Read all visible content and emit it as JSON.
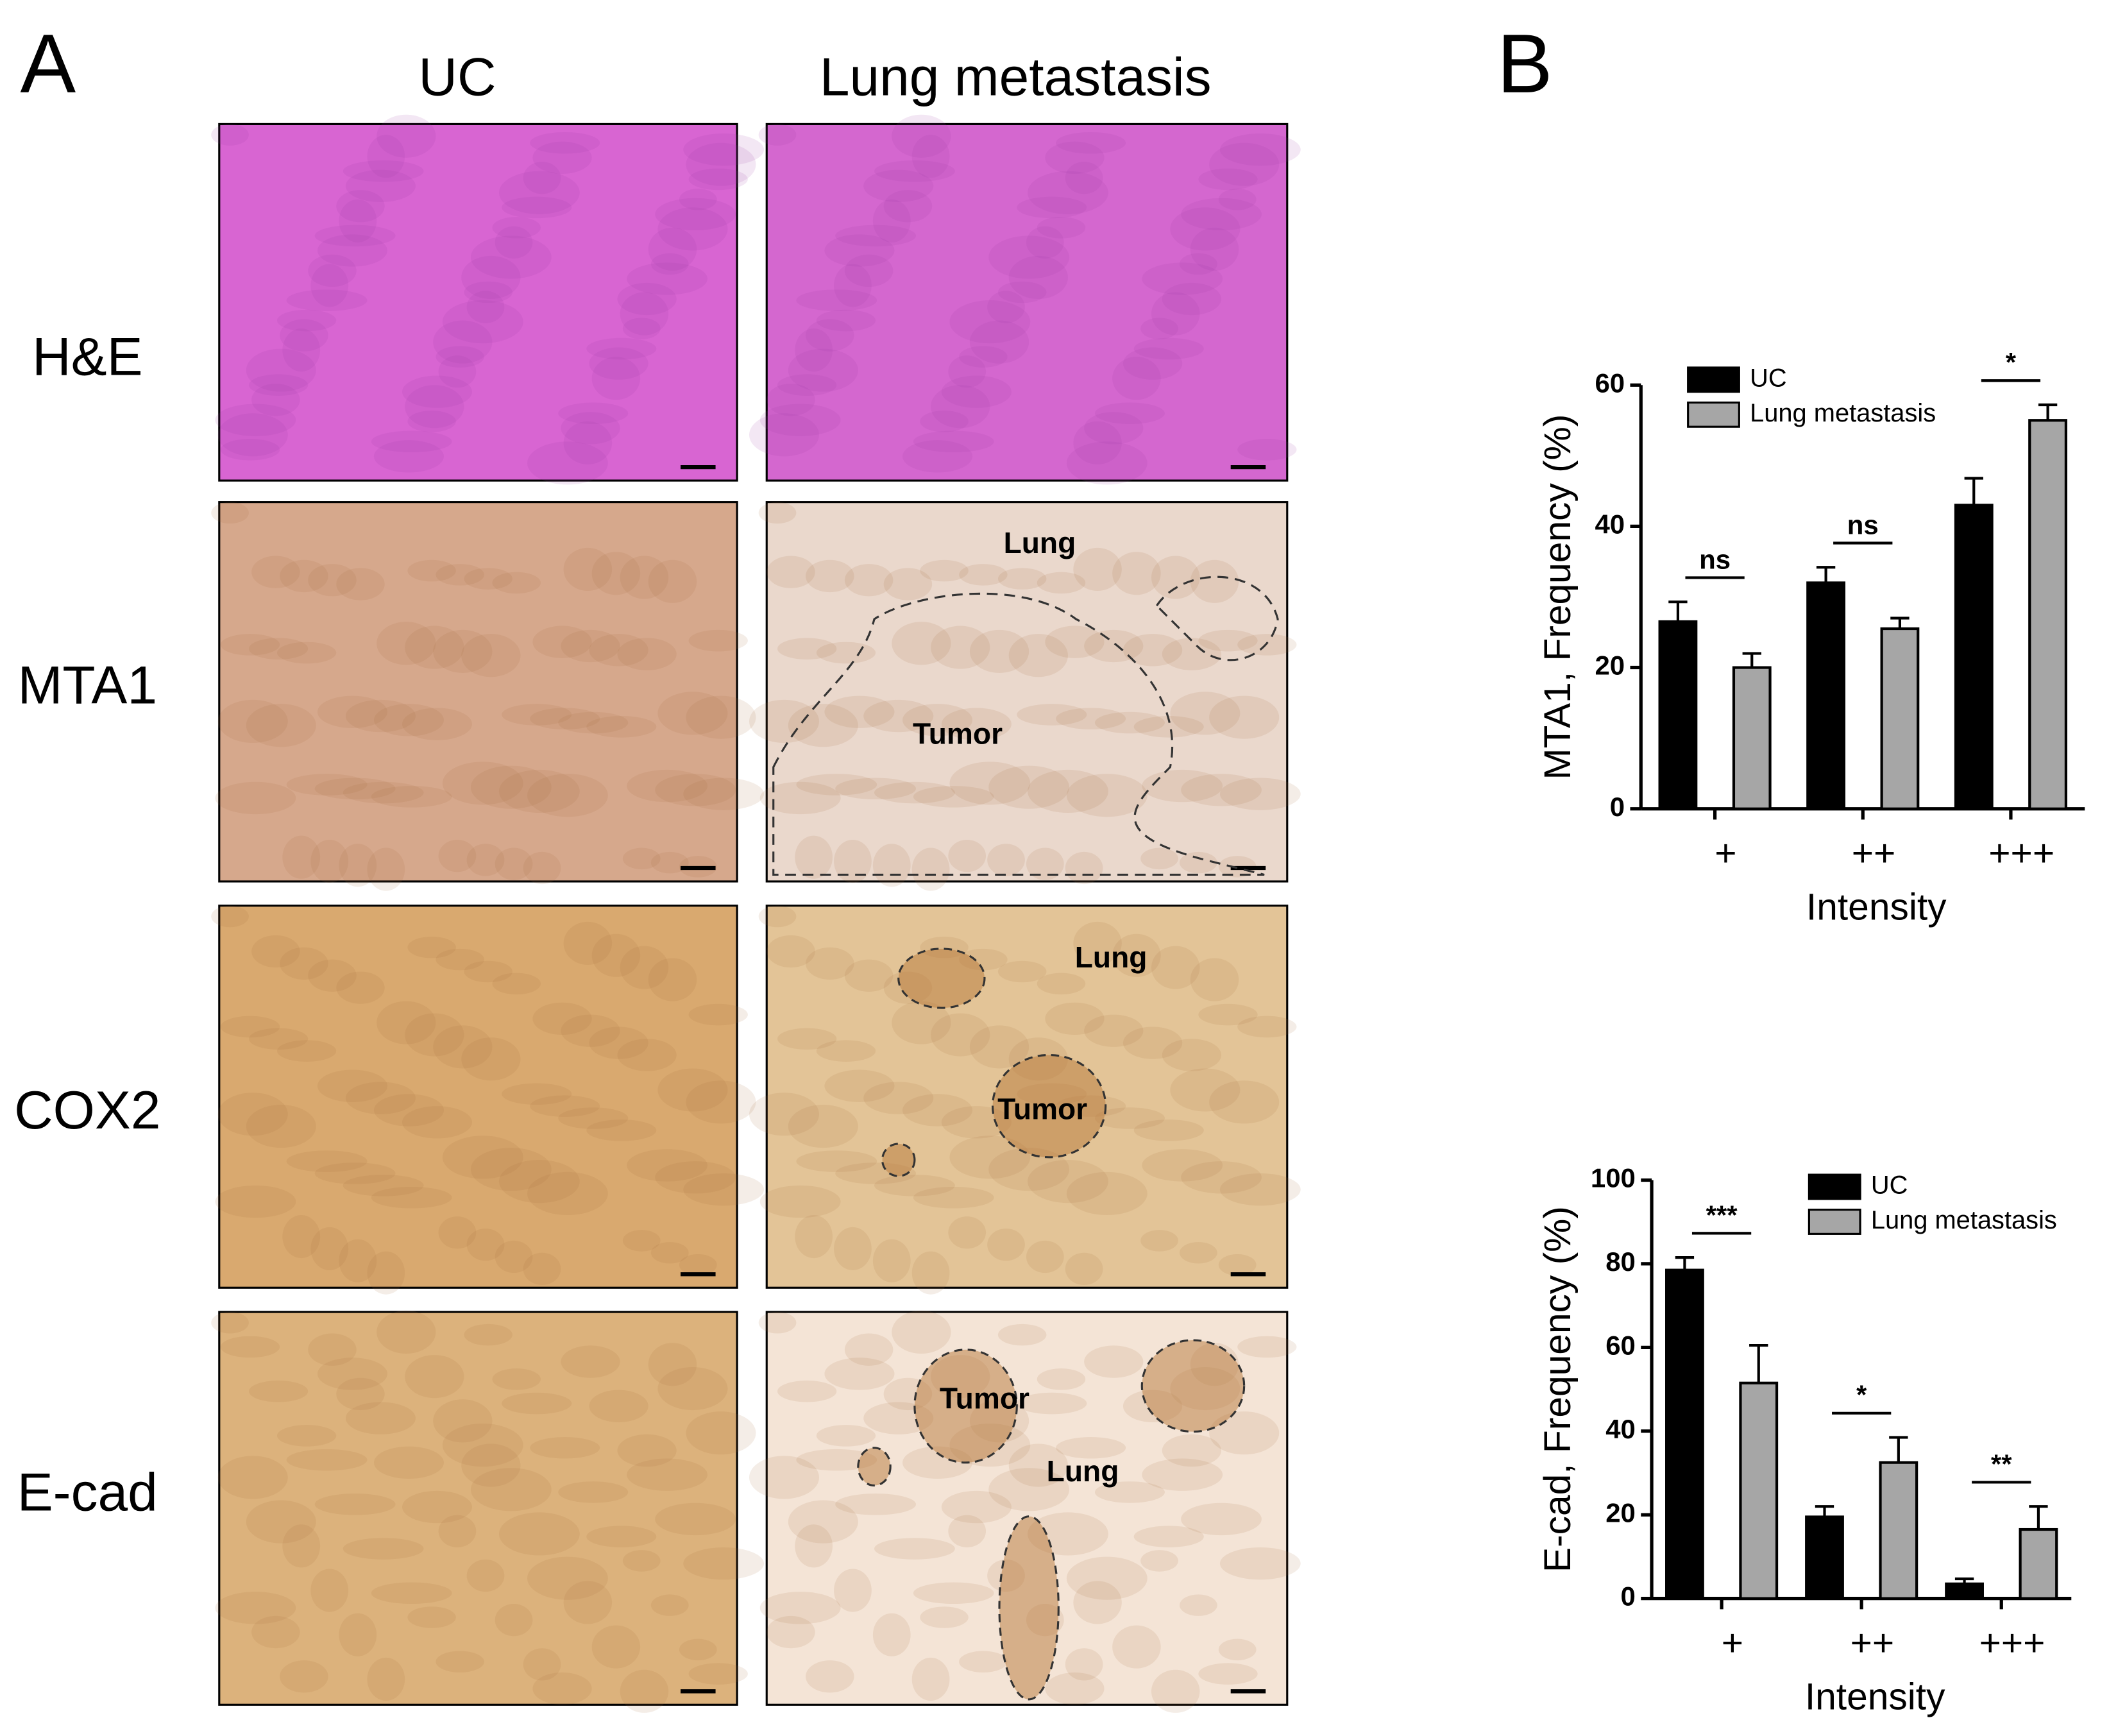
{
  "panel_labels": [
    "A",
    "B"
  ],
  "columns": [
    "UC",
    "Lung metastasis"
  ],
  "rows": [
    "H&E",
    "MTA1",
    "COX2",
    "E-cad"
  ],
  "image_labels": {
    "mta1": [
      "Lung",
      "Tumor"
    ],
    "cox2": [
      "Lung",
      "Tumor"
    ],
    "ecad": [
      "Tumor",
      "Lung"
    ]
  },
  "chart_data": [
    {
      "type": "bar",
      "y_label": "MTA1, Frequency (%)",
      "x_label": "Intensity",
      "categories": [
        "+",
        "++",
        "+++"
      ],
      "series": [
        {
          "name": "UC",
          "color": "#000000",
          "values": [
            26.5,
            32,
            43
          ],
          "errors": [
            2.8,
            2.2,
            3.8
          ]
        },
        {
          "name": "Lung metastasis",
          "color": "#a6a6a6",
          "values": [
            20,
            25.5,
            55
          ],
          "errors": [
            2,
            1.5,
            2.2
          ]
        }
      ],
      "ylim": [
        0,
        60
      ],
      "yticks": [
        0,
        20,
        40,
        60
      ],
      "annotations": [
        "ns",
        "ns",
        "*"
      ]
    },
    {
      "type": "bar",
      "y_label": "E-cad, Frequency (%)",
      "x_label": "Intensity",
      "categories": [
        "+",
        "++",
        "+++"
      ],
      "series": [
        {
          "name": "UC",
          "color": "#000000",
          "values": [
            78.5,
            19.5,
            3.5
          ],
          "errors": [
            3,
            2.5,
            1.2
          ]
        },
        {
          "name": "Lung metastasis",
          "color": "#a6a6a6",
          "values": [
            51.5,
            32.5,
            16.5
          ],
          "errors": [
            9,
            6,
            5.5
          ]
        }
      ],
      "ylim": [
        0,
        100
      ],
      "yticks": [
        0,
        20,
        40,
        60,
        80,
        100
      ],
      "annotations": [
        "***",
        "*",
        "**"
      ]
    }
  ]
}
